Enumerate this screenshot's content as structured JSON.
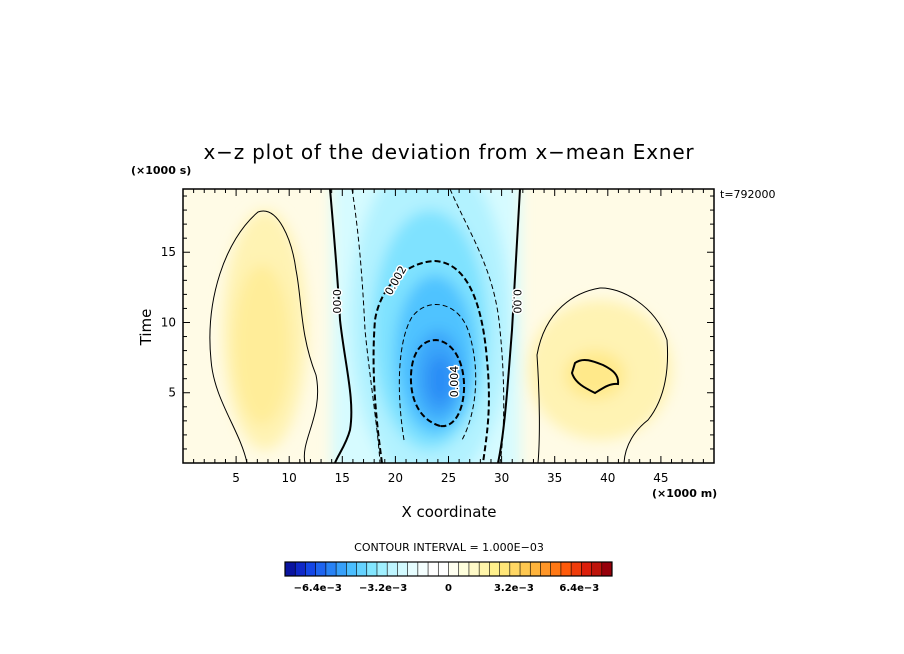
{
  "chart_data": {
    "type": "heatmap",
    "title": "x−z plot of the deviation from x−mean Exner",
    "xlabel": "X coordinate",
    "ylabel": "Time",
    "x_unit": "(×1000 m)",
    "y_unit": "(×1000 s)",
    "time_stamp": "t=792000",
    "xlim": [
      0,
      50
    ],
    "ylim": [
      0,
      19.5
    ],
    "x_ticks": [
      5,
      10,
      15,
      20,
      25,
      30,
      35,
      40,
      45
    ],
    "y_ticks": [
      5,
      10,
      15
    ],
    "contour_interval_text": "CONTOUR INTERVAL = 1.000E−03",
    "contour_labels": [
      {
        "text": "0.00",
        "x": 14.5,
        "y": 11.5,
        "rotate": 90
      },
      {
        "text": "0.002",
        "x": 20.0,
        "y": 13.0,
        "rotate": -60
      },
      {
        "text": "0.004",
        "x": 25.5,
        "y": 5.8,
        "rotate": -90
      },
      {
        "text": "0.00",
        "x": 31.5,
        "y": 11.5,
        "rotate": 90
      }
    ],
    "colorbar": {
      "min": -0.008,
      "max": 0.008,
      "tick_labels": [
        "−6.4e−3",
        "−3.2e−3",
        "0",
        "3.2e−3",
        "6.4e−3"
      ],
      "tick_values": [
        -0.0064,
        -0.0032,
        0,
        0.0032,
        0.0064
      ],
      "colors": [
        "#0a14a0",
        "#0f28c8",
        "#1446e6",
        "#1e64f0",
        "#2882f5",
        "#37a0fa",
        "#4bbeff",
        "#64d2ff",
        "#82e6ff",
        "#a0f0ff",
        "#bef5ff",
        "#d2faff",
        "#e6fdff",
        "#f5ffff",
        "#ffffff",
        "#ffffff",
        "#fffff0",
        "#ffffdc",
        "#fffac8",
        "#fff5aa",
        "#fff08c",
        "#ffe678",
        "#ffd764",
        "#ffc850",
        "#ffb43c",
        "#ff9628",
        "#ff7814",
        "#ff5a0a",
        "#f03c0a",
        "#dc1e0a",
        "#be140a",
        "#96000a"
      ]
    }
  }
}
